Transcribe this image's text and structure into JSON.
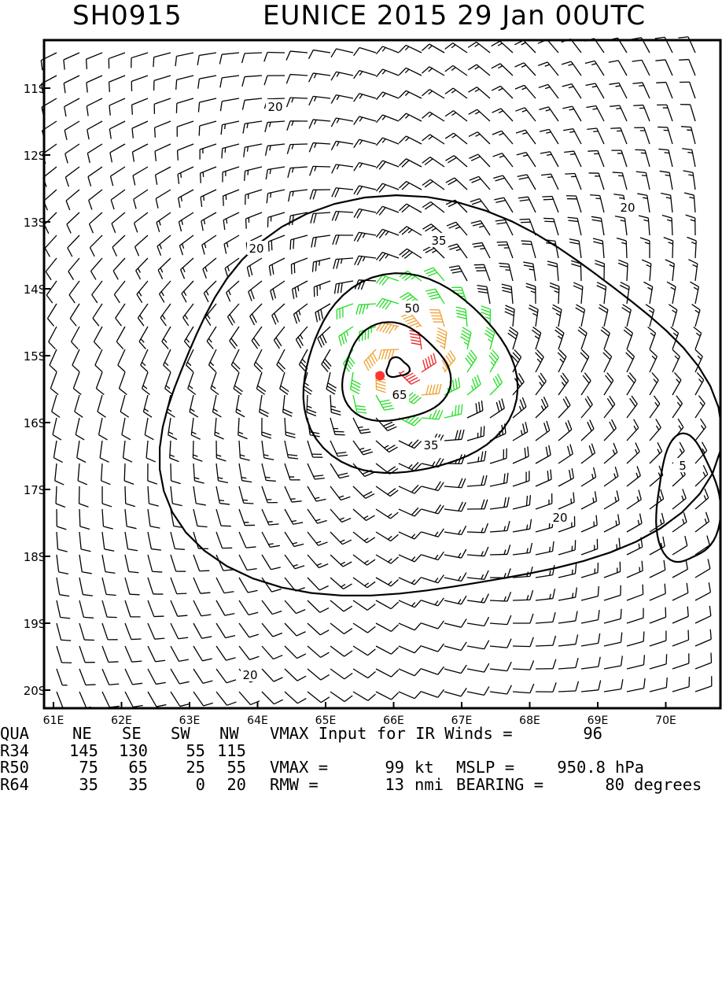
{
  "header": {
    "storm_id": "SH0915",
    "storm_title": "EUNICE 2015 29 Jan 00UTC"
  },
  "map": {
    "lat_labels": [
      "11S",
      "12S",
      "13S",
      "14S",
      "15S",
      "16S",
      "17S",
      "18S",
      "19S",
      "20S"
    ],
    "lon_labels": [
      "61E",
      "62E",
      "63E",
      "64E",
      "65E",
      "66E",
      "67E",
      "68E",
      "69E",
      "70E"
    ],
    "contours": [
      {
        "level": 5,
        "label": "5"
      },
      {
        "level": 20,
        "label": "20"
      },
      {
        "level": 35,
        "label": "35"
      },
      {
        "level": 50,
        "label": "50"
      },
      {
        "level": 65,
        "label": "65"
      }
    ],
    "center": {
      "lat": -15.3,
      "lon": 65.8
    },
    "colors": {
      "lt34": "#000000",
      "34to49": "#22dd22",
      "50to63": "#f0a030",
      "64to79": "#f07830",
      "ge80": "#ee2222",
      "center": "#ff3333"
    }
  },
  "stats": {
    "header_row": {
      "label": "QUA",
      "ne": "NE",
      "se": "SE",
      "sw": "SW",
      "nw": "NW",
      "note": "VMAX Input for IR Winds =",
      "note_value": "96"
    },
    "r34": {
      "label": "R34",
      "ne": "145",
      "se": "130",
      "sw": "55",
      "nw": "115"
    },
    "r50": {
      "label": "R50",
      "ne": "75",
      "se": "65",
      "sw": "25",
      "nw": "55",
      "vmax_label": "VMAX =",
      "vmax_value": "99",
      "vmax_unit": "kt",
      "mslp_label": "MSLP =",
      "mslp_value": "950.8",
      "mslp_unit": "hPa"
    },
    "r64": {
      "label": "R64",
      "ne": "35",
      "se": "35",
      "sw": "0",
      "nw": "20",
      "rmw_label": "RMW =",
      "rmw_value": "13",
      "rmw_unit": "nmi",
      "bearing_label": "BEARING =",
      "bearing_value": "80",
      "bearing_unit": "degrees"
    }
  }
}
